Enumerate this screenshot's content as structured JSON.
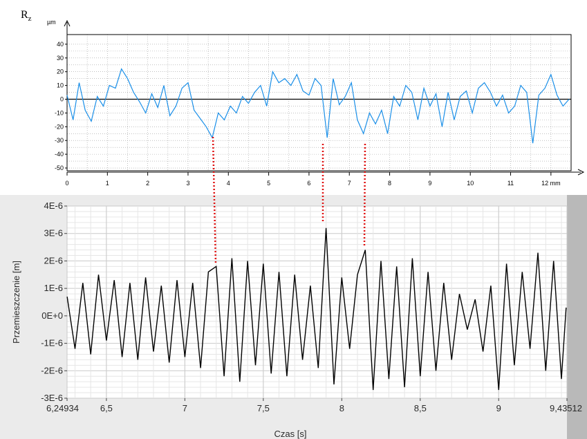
{
  "chart_data": [
    {
      "type": "line",
      "label": "Rz",
      "label_main": "R",
      "label_sub": "z",
      "y_unit": "µm",
      "x_unit": "mm",
      "xlim": [
        0,
        12.5
      ],
      "ylim": [
        -52,
        47
      ],
      "x_ticks": [
        0,
        1,
        2,
        3,
        4,
        5,
        6,
        7,
        8,
        9,
        10,
        11,
        12
      ],
      "x_tick_labels": [
        "0",
        "1",
        "2",
        "3",
        "4",
        "5",
        "6",
        "7",
        "8",
        "9",
        "10",
        "11",
        "12 mm"
      ],
      "y_ticks": [
        40,
        30,
        20,
        10,
        0,
        -10,
        -20,
        -30,
        -40,
        -50
      ],
      "y_tick_labels": [
        "40",
        "30",
        "20",
        "10",
        "0",
        "-10",
        "-20",
        "-30",
        "-40",
        "-50"
      ],
      "grid": true,
      "line_color": "#1a8fe8",
      "zero_line": true,
      "series": [
        {
          "x": [
            0,
            0.15,
            0.3,
            0.45,
            0.6,
            0.75,
            0.9,
            1.05,
            1.2,
            1.35,
            1.5,
            1.65,
            1.8,
            1.95,
            2.1,
            2.25,
            2.4,
            2.55,
            2.7,
            2.85,
            3.0,
            3.15,
            3.3,
            3.45,
            3.6,
            3.75,
            3.9,
            4.05,
            4.2,
            4.35,
            4.5,
            4.65,
            4.8,
            4.95,
            5.1,
            5.25,
            5.4,
            5.55,
            5.7,
            5.85,
            6.0,
            6.15,
            6.3,
            6.45,
            6.6,
            6.75,
            6.9,
            7.05,
            7.2,
            7.35,
            7.5,
            7.65,
            7.8,
            7.95,
            8.1,
            8.25,
            8.4,
            8.55,
            8.7,
            8.85,
            9.0,
            9.15,
            9.3,
            9.45,
            9.6,
            9.75,
            9.9,
            10.05,
            10.2,
            10.35,
            10.5,
            10.65,
            10.8,
            10.95,
            11.1,
            11.25,
            11.4,
            11.55,
            11.7,
            11.85,
            12.0,
            12.15,
            12.3,
            12.45
          ],
          "y": [
            3,
            -15,
            12,
            -8,
            -16,
            2,
            -5,
            10,
            8,
            22,
            15,
            5,
            -2,
            -10,
            4,
            -6,
            10,
            -12,
            -5,
            8,
            12,
            -8,
            -14,
            -20,
            -28,
            -10,
            -15,
            -5,
            -10,
            2,
            -3,
            5,
            10,
            -5,
            20,
            12,
            15,
            10,
            18,
            6,
            3,
            15,
            10,
            -28,
            15,
            -4,
            2,
            12,
            -15,
            -25,
            -10,
            -18,
            -8,
            -25,
            2,
            -5,
            10,
            5,
            -15,
            8,
            -5,
            4,
            -20,
            5,
            -15,
            2,
            6,
            -10,
            8,
            12,
            5,
            -5,
            3,
            -10,
            -5,
            10,
            5,
            -32,
            3,
            8,
            18,
            3,
            -5,
            0
          ]
        }
      ]
    },
    {
      "type": "line",
      "xlabel": "Czas [s]",
      "ylabel": "Przemieszczenie [m]",
      "xlim": [
        6.24934,
        9.43512
      ],
      "ylim": [
        -3e-06,
        4e-06
      ],
      "x_ticks": [
        6.24934,
        6.5,
        7,
        7.5,
        8,
        8.5,
        9,
        9.43512
      ],
      "x_tick_labels": [
        "6,24934",
        "6,5",
        "7",
        "7,5",
        "8",
        "8,5",
        "9",
        "9,43512"
      ],
      "y_ticks": [
        4e-06,
        3e-06,
        2e-06,
        1e-06,
        0,
        -1e-06,
        -2e-06,
        -3e-06
      ],
      "y_tick_labels": [
        "4E-6",
        "3E-6",
        "2E-6",
        "1E-6",
        "0E+0",
        "-1E-6",
        "-2E-6",
        "-3E-6"
      ],
      "grid": true,
      "line_color": "#000000",
      "series": [
        {
          "x": [
            6.25,
            6.3,
            6.35,
            6.4,
            6.45,
            6.5,
            6.55,
            6.6,
            6.65,
            6.7,
            6.75,
            6.8,
            6.85,
            6.9,
            6.95,
            7.0,
            7.05,
            7.1,
            7.15,
            7.2,
            7.25,
            7.3,
            7.35,
            7.4,
            7.45,
            7.5,
            7.55,
            7.6,
            7.65,
            7.7,
            7.75,
            7.8,
            7.85,
            7.9,
            7.95,
            8.0,
            8.05,
            8.1,
            8.15,
            8.2,
            8.25,
            8.3,
            8.35,
            8.4,
            8.45,
            8.5,
            8.55,
            8.6,
            8.65,
            8.7,
            8.75,
            8.8,
            8.85,
            8.9,
            8.95,
            9.0,
            9.05,
            9.1,
            9.15,
            9.2,
            9.25,
            9.3,
            9.35,
            9.4,
            9.43
          ],
          "y": [
            7e-07,
            -1.2e-06,
            1.2e-06,
            -1.4e-06,
            1.5e-06,
            -9e-07,
            1.3e-06,
            -1.5e-06,
            1.2e-06,
            -1.6e-06,
            1.4e-06,
            -1.3e-06,
            1.1e-06,
            -1.7e-06,
            1.3e-06,
            -1.5e-06,
            1.2e-06,
            -1.9e-06,
            1.6e-06,
            1.8e-06,
            -2.2e-06,
            2.1e-06,
            -2.4e-06,
            2e-06,
            -1.8e-06,
            1.9e-06,
            -2.1e-06,
            1.6e-06,
            -2.2e-06,
            1.5e-06,
            -1.6e-06,
            1.1e-06,
            -1.9e-06,
            3.2e-06,
            -2.5e-06,
            1.4e-06,
            -1.2e-06,
            1.5e-06,
            2.4e-06,
            -2.7e-06,
            2e-06,
            -2.3e-06,
            1.8e-06,
            -2.6e-06,
            2.1e-06,
            -2.2e-06,
            1.6e-06,
            -2e-06,
            1.2e-06,
            -1.6e-06,
            8e-07,
            -5e-07,
            6e-07,
            -1.3e-06,
            1.1e-06,
            -2.7e-06,
            1.9e-06,
            -1.8e-06,
            1.6e-06,
            -1.2e-06,
            2.3e-06,
            -2e-06,
            2e-06,
            -2.3e-06,
            3e-07
          ]
        }
      ]
    }
  ]
}
